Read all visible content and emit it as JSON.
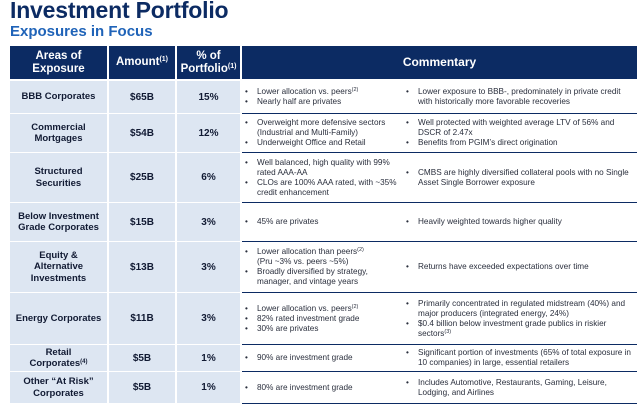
{
  "title": "Investment Portfolio",
  "subtitle": "Exposures in Focus",
  "table": {
    "headers": {
      "areas": "Areas of Exposure",
      "amount": "Amount",
      "amount_note": "(1)",
      "percent": "% of Portfolio",
      "percent_note": "(1)",
      "commentary": "Commentary"
    },
    "rows": [
      {
        "area": "BBB Corporates",
        "area_note": "",
        "amount": "$65B",
        "percent": "15%",
        "left": [
          {
            "text": "Lower allocation vs. peers",
            "note": "(2)"
          },
          {
            "text": "Nearly half are privates",
            "note": ""
          }
        ],
        "right": [
          {
            "text": "Lower exposure to BBB-, predominately in private credit with historically more favorable recoveries",
            "note": ""
          }
        ]
      },
      {
        "area": "Commercial Mortgages",
        "area_note": "",
        "amount": "$54B",
        "percent": "12%",
        "left": [
          {
            "text": "Overweight more defensive sectors (Industrial and Multi-Family)",
            "note": ""
          },
          {
            "text": "Underweight Office and Retail",
            "note": ""
          }
        ],
        "right": [
          {
            "text": "Well protected with weighted average LTV of 56% and DSCR of 2.47x",
            "note": ""
          },
          {
            "text": "Benefits from PGIM’s direct origination",
            "note": ""
          }
        ]
      },
      {
        "area": "Structured Securities",
        "area_note": "",
        "amount": "$25B",
        "percent": "6%",
        "left": [
          {
            "text": "Well balanced, high quality with 99% rated AAA-AA",
            "note": ""
          },
          {
            "text": "CLOs are 100% AAA rated, with ~35% credit enhancement",
            "note": ""
          }
        ],
        "right": [
          {
            "text": "CMBS are highly diversified collateral pools with no Single Asset Single Borrower exposure",
            "note": ""
          }
        ]
      },
      {
        "area": "Below Investment Grade Corporates",
        "area_note": "",
        "amount": "$15B",
        "percent": "3%",
        "left": [
          {
            "text": "45% are privates",
            "note": ""
          }
        ],
        "right": [
          {
            "text": "Heavily weighted towards higher quality",
            "note": ""
          }
        ]
      },
      {
        "area": "Equity & Alternative Investments",
        "area_note": "",
        "amount": "$13B",
        "percent": "3%",
        "left": [
          {
            "text": "Lower allocation than peers",
            "note": "(2)"
          },
          {
            "text": "(Pru ~3% vs. peers ~5%)",
            "note": "",
            "continuation": true
          },
          {
            "text": "Broadly diversified by strategy, manager, and vintage years",
            "note": ""
          }
        ],
        "right": [
          {
            "text": "Returns have exceeded expectations over time",
            "note": ""
          }
        ]
      },
      {
        "area": "Energy Corporates",
        "area_note": "",
        "amount": "$11B",
        "percent": "3%",
        "left": [
          {
            "text": "Lower allocation vs. peers",
            "note": "(2)"
          },
          {
            "text": "82% rated investment grade",
            "note": ""
          },
          {
            "text": "30% are privates",
            "note": ""
          }
        ],
        "right": [
          {
            "text": "Primarily concentrated in regulated midstream (40%) and major producers (integrated energy, 24%)",
            "note": ""
          },
          {
            "text": "$0.4 billion below investment grade publics in riskier sectors",
            "note": "(3)"
          }
        ]
      },
      {
        "area": "Retail Corporates",
        "area_note": "(4)",
        "amount": "$5B",
        "percent": "1%",
        "left": [
          {
            "text": "90% are investment grade",
            "note": ""
          }
        ],
        "right": [
          {
            "text": "Significant portion of investments (65% of total exposure in 10 companies) in large, essential retailers",
            "note": ""
          }
        ]
      },
      {
        "area": "Other “At Risk” Corporates",
        "area_note": "",
        "amount": "$5B",
        "percent": "1%",
        "left": [
          {
            "text": "80% are investment grade",
            "note": ""
          }
        ],
        "right": [
          {
            "text": "Includes Automotive, Restaurants, Gaming, Leisure, Lodging, and Airlines",
            "note": ""
          }
        ]
      }
    ]
  },
  "colors": {
    "navy": "#0c2b63",
    "accent_blue": "#1f63b8",
    "cell_fill": "#dde6f2"
  }
}
